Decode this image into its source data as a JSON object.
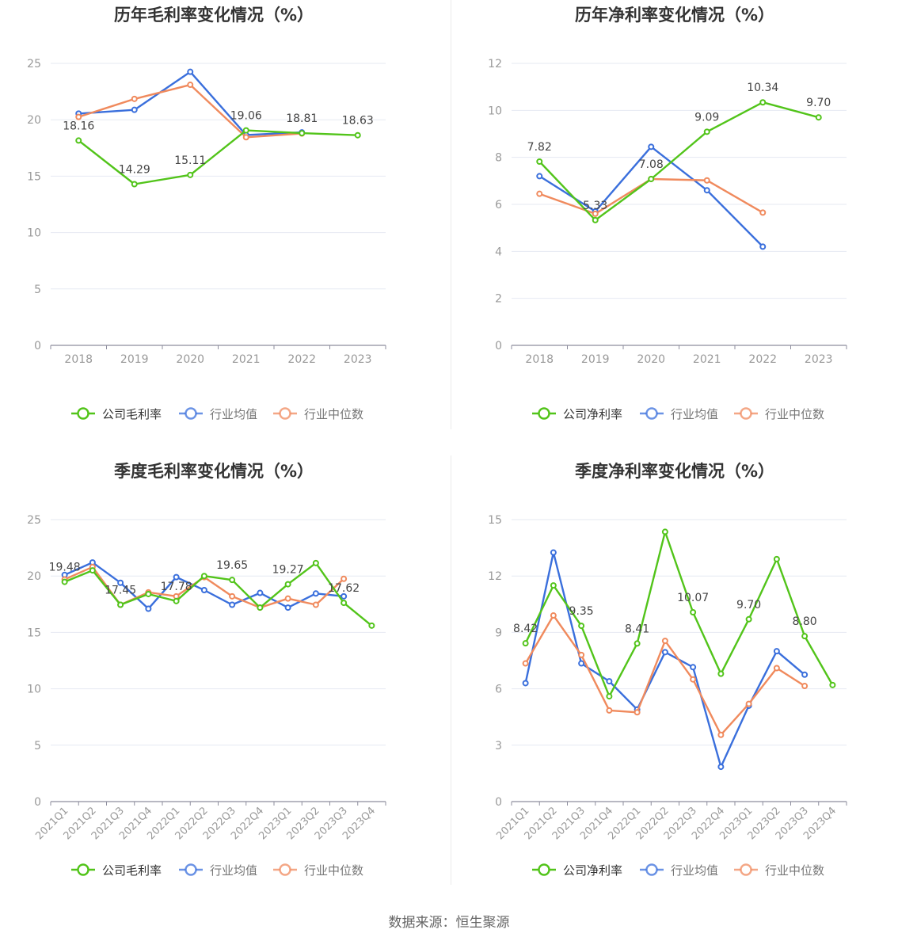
{
  "source": "数据来源：恒生聚源",
  "colors": {
    "company": "#52c41a",
    "avg": "#3a6fdc",
    "median": "#f08a5d"
  },
  "chart_data": [
    {
      "type": "line",
      "title": "历年毛利率变化情况（%）",
      "categories": [
        "2018",
        "2019",
        "2020",
        "2021",
        "2022",
        "2023"
      ],
      "ylim": [
        0,
        25
      ],
      "yticks": [
        "0",
        "5",
        "10",
        "15",
        "20",
        "25"
      ],
      "legend": [
        "公司毛利率",
        "行业均值",
        "行业中位数"
      ],
      "grid": true,
      "legend_position": "bottom",
      "series": [
        {
          "name": "公司毛利率",
          "values": [
            18.16,
            14.29,
            15.11,
            19.06,
            18.81,
            18.63
          ],
          "labels": [
            "18.16",
            "14.29",
            "15.11",
            "19.06",
            "18.81",
            "18.63"
          ]
        },
        {
          "name": "行业均值",
          "values": [
            20.55,
            20.88,
            24.25,
            18.65,
            18.88,
            null
          ]
        },
        {
          "name": "行业中位数",
          "values": [
            20.25,
            21.85,
            23.1,
            18.45,
            18.78,
            null
          ]
        }
      ]
    },
    {
      "type": "line",
      "title": "历年净利率变化情况（%）",
      "categories": [
        "2018",
        "2019",
        "2020",
        "2021",
        "2022",
        "2023"
      ],
      "ylim": [
        0,
        12
      ],
      "yticks": [
        "0",
        "2",
        "4",
        "6",
        "8",
        "10",
        "12"
      ],
      "legend": [
        "公司净利率",
        "行业均值",
        "行业中位数"
      ],
      "grid": true,
      "legend_position": "bottom",
      "series": [
        {
          "name": "公司净利率",
          "values": [
            7.82,
            5.33,
            7.08,
            9.09,
            10.34,
            9.7
          ],
          "labels": [
            "7.82",
            "5.33",
            "7.08",
            "9.09",
            "10.34",
            "9.70"
          ]
        },
        {
          "name": "行业均值",
          "values": [
            7.2,
            5.7,
            8.45,
            6.6,
            4.2,
            null
          ]
        },
        {
          "name": "行业中位数",
          "values": [
            6.45,
            5.6,
            7.08,
            7.02,
            5.65,
            null
          ]
        }
      ]
    },
    {
      "type": "line",
      "title": "季度毛利率变化情况（%）",
      "categories": [
        "2021Q1",
        "2021Q2",
        "2021Q3",
        "2021Q4",
        "2022Q1",
        "2022Q2",
        "2022Q3",
        "2022Q4",
        "2023Q1",
        "2023Q2",
        "2023Q3",
        "2023Q4"
      ],
      "ylim": [
        0,
        25
      ],
      "yticks": [
        "0",
        "5",
        "10",
        "15",
        "20",
        "25"
      ],
      "legend": [
        "公司毛利率",
        "行业均值",
        "行业中位数"
      ],
      "grid": true,
      "legend_position": "bottom",
      "series": [
        {
          "name": "公司毛利率",
          "values": [
            19.48,
            20.5,
            17.45,
            18.4,
            17.78,
            20.0,
            19.65,
            17.2,
            19.27,
            21.15,
            17.62,
            15.6
          ],
          "labels": [
            "19.48",
            "",
            "17.45",
            "",
            "17.78",
            "",
            "19.65",
            "",
            "19.27",
            "",
            "17.62",
            ""
          ]
        },
        {
          "name": "行业均值",
          "values": [
            20.1,
            21.2,
            19.4,
            17.1,
            19.9,
            18.75,
            17.45,
            18.5,
            17.2,
            18.45,
            18.2,
            null
          ]
        },
        {
          "name": "行业中位数",
          "values": [
            19.7,
            20.8,
            17.45,
            18.55,
            18.2,
            19.9,
            18.2,
            17.2,
            18.0,
            17.45,
            19.75,
            null
          ]
        }
      ]
    },
    {
      "type": "line",
      "title": "季度净利率变化情况（%）",
      "categories": [
        "2021Q1",
        "2021Q2",
        "2021Q3",
        "2021Q4",
        "2022Q1",
        "2022Q2",
        "2022Q3",
        "2022Q4",
        "2023Q1",
        "2023Q2",
        "2023Q3",
        "2023Q4"
      ],
      "ylim": [
        0,
        15
      ],
      "yticks": [
        "0",
        "3",
        "6",
        "9",
        "12",
        "15"
      ],
      "legend": [
        "公司净利率",
        "行业均值",
        "行业中位数"
      ],
      "grid": true,
      "legend_position": "bottom",
      "series": [
        {
          "name": "公司净利率",
          "values": [
            8.42,
            11.5,
            9.35,
            5.6,
            8.41,
            14.35,
            10.07,
            6.8,
            9.7,
            12.9,
            8.8,
            6.2
          ],
          "labels": [
            "8.42",
            "",
            "9.35",
            "",
            "8.41",
            "",
            "10.07",
            "",
            "9.70",
            "",
            "8.80",
            ""
          ]
        },
        {
          "name": "行业均值",
          "values": [
            6.3,
            13.25,
            7.35,
            6.4,
            4.9,
            7.95,
            7.15,
            1.85,
            5.1,
            8.0,
            6.75,
            null
          ]
        },
        {
          "name": "行业中位数",
          "values": [
            7.35,
            9.9,
            7.8,
            4.85,
            4.75,
            8.55,
            6.5,
            3.55,
            5.2,
            7.1,
            6.15,
            null
          ]
        }
      ]
    }
  ]
}
